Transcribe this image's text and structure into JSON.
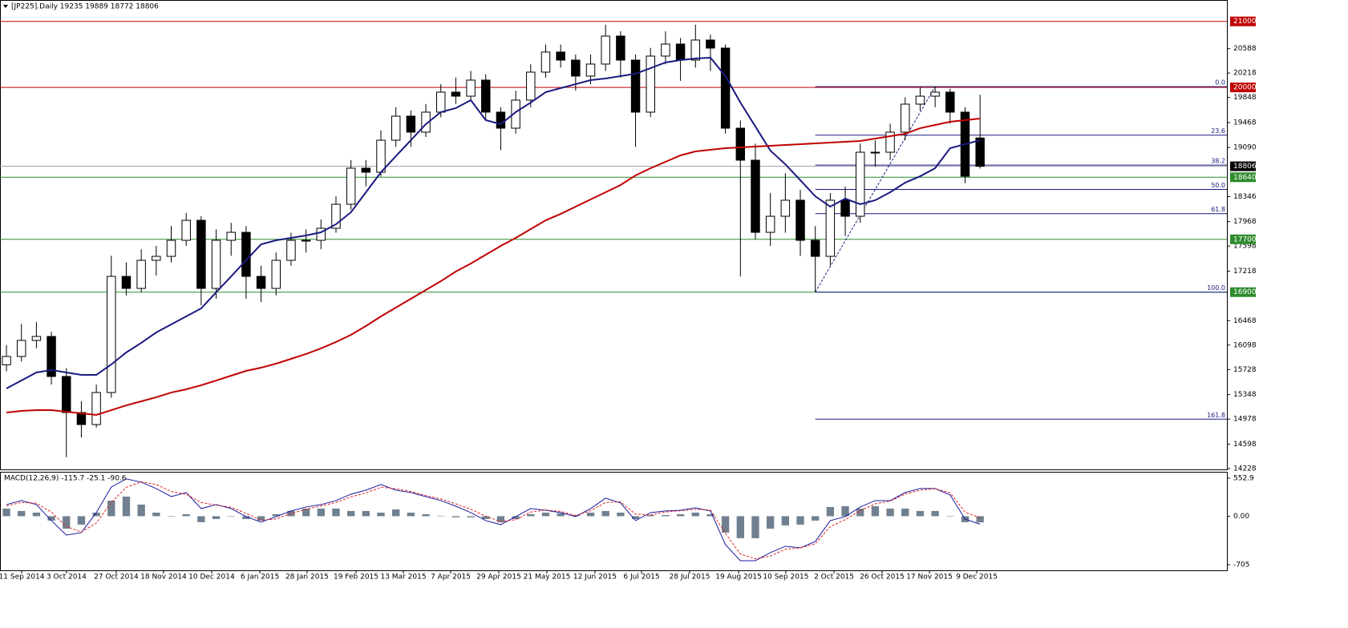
{
  "chart_data": [
    {
      "type": "candlestick",
      "title": "[JP225].Daily  19235 19889 18772 18806",
      "x": [
        0,
        1,
        2,
        3,
        4,
        5,
        6,
        7,
        8,
        9,
        10,
        11,
        12,
        13,
        14,
        15,
        16,
        17,
        18,
        19,
        20,
        21,
        22,
        23,
        24,
        25,
        26,
        27,
        28,
        29,
        30,
        31,
        32,
        33,
        34,
        35,
        36,
        37,
        38,
        39,
        40,
        41,
        42,
        43,
        44,
        45,
        46,
        47,
        48,
        49,
        50,
        51,
        52,
        53,
        54,
        55,
        56,
        57,
        58,
        59,
        60,
        61,
        62,
        63,
        64,
        65
      ],
      "open": [
        15800,
        15926,
        16169,
        16229,
        15623,
        15077,
        14895,
        15380,
        17139,
        16957,
        17382,
        17442,
        17685,
        17988,
        16957,
        17685,
        17806,
        17139,
        16957,
        17382,
        17685,
        17685,
        17867,
        18231,
        18777,
        18716,
        19201,
        19565,
        19323,
        19626,
        19929,
        19868,
        20111,
        19626,
        19383,
        19808,
        20232,
        20536,
        20414,
        20172,
        20354,
        20778,
        20414,
        19626,
        20475,
        20657,
        20414,
        20718,
        20596,
        19383,
        18898,
        17806,
        18049,
        18292,
        17685,
        17442,
        18292,
        18049,
        19019,
        19019,
        19323,
        19747,
        19868,
        19929,
        19626,
        19235
      ],
      "high": [
        16100,
        16420,
        16450,
        16300,
        15750,
        15250,
        15500,
        17450,
        17350,
        17550,
        17600,
        17900,
        18100,
        18050,
        17850,
        17950,
        17900,
        17300,
        17500,
        17800,
        17850,
        18000,
        18350,
        18900,
        18900,
        19350,
        19700,
        19650,
        19750,
        20050,
        20150,
        20250,
        20200,
        19700,
        19950,
        20350,
        20650,
        20650,
        20500,
        20500,
        20950,
        20850,
        20500,
        20600,
        20850,
        20750,
        20950,
        20800,
        20650,
        19500,
        19150,
        18400,
        18700,
        18450,
        17900,
        18400,
        18500,
        19150,
        19200,
        19450,
        19850,
        20000,
        20012,
        19980,
        19700,
        19889
      ],
      "low": [
        15700,
        15850,
        16050,
        15500,
        14400,
        14700,
        14850,
        15300,
        16850,
        16900,
        17150,
        17350,
        17600,
        16700,
        16800,
        17450,
        16800,
        16750,
        16850,
        17300,
        17500,
        17550,
        17800,
        18150,
        18500,
        18650,
        19100,
        19100,
        19250,
        19550,
        19750,
        19800,
        19500,
        19050,
        19300,
        19700,
        20150,
        20300,
        19950,
        20050,
        20250,
        20150,
        19100,
        19550,
        20350,
        20100,
        20300,
        20250,
        19300,
        17139,
        17700,
        17600,
        17800,
        17450,
        16900,
        17300,
        17750,
        17950,
        18800,
        18900,
        19200,
        19650,
        19700,
        19450,
        18550,
        18772
      ],
      "close": [
        15926,
        16169,
        16229,
        15623,
        15077,
        14895,
        15380,
        17139,
        16957,
        17382,
        17442,
        17685,
        17988,
        16957,
        17685,
        17806,
        17139,
        16957,
        17382,
        17685,
        17685,
        17867,
        18231,
        18777,
        18716,
        19201,
        19565,
        19323,
        19626,
        19929,
        19868,
        20111,
        19626,
        19383,
        19808,
        20232,
        20536,
        20414,
        20172,
        20354,
        20778,
        20414,
        19626,
        20475,
        20657,
        20414,
        20718,
        20596,
        19383,
        18898,
        17806,
        18049,
        18292,
        17685,
        17442,
        18292,
        18049,
        19019,
        19019,
        19323,
        19747,
        19868,
        19929,
        19626,
        18655,
        18806
      ],
      "up_color": "#ffffff",
      "down_color": "#000000",
      "edge_color": "#000000",
      "lines": [
        {
          "color": "#1a1a80",
          "values": [
            15441,
            15562,
            15684,
            15720,
            15684,
            15647,
            15647,
            15805,
            15987,
            16132,
            16290,
            16411,
            16533,
            16654,
            16897,
            17139,
            17382,
            17624,
            17685,
            17721,
            17758,
            17806,
            17928,
            18110,
            18413,
            18716,
            18959,
            19201,
            19444,
            19626,
            19687,
            19808,
            19505,
            19444,
            19626,
            19771,
            19929,
            19990,
            20050,
            20111,
            20135,
            20172,
            20208,
            20293,
            20378,
            20414,
            20439,
            20451,
            20172,
            19771,
            19408,
            19044,
            18837,
            18595,
            18352,
            18195,
            18316,
            18231,
            18292,
            18413,
            18558,
            18655,
            18777,
            19080,
            19141,
            19201
          ]
        },
        {
          "color": "#c00000",
          "values": [
            15077,
            15101,
            15113,
            15113,
            15089,
            15065,
            15041,
            15113,
            15186,
            15247,
            15308,
            15380,
            15429,
            15490,
            15562,
            15635,
            15708,
            15756,
            15817,
            15890,
            15963,
            16048,
            16145,
            16254,
            16387,
            16533,
            16666,
            16800,
            16933,
            17066,
            17212,
            17333,
            17467,
            17600,
            17721,
            17855,
            17988,
            18085,
            18195,
            18304,
            18413,
            18522,
            18668,
            18777,
            18874,
            18971,
            19031,
            19056,
            19080,
            19092,
            19104,
            19116,
            19129,
            19141,
            19153,
            19165,
            19177,
            19189,
            19226,
            19262,
            19298,
            19383,
            19432,
            19480,
            19505,
            19529
          ]
        }
      ],
      "xlim": [
        -0.43,
        81.48
      ],
      "xticks": [
        {
          "value": 1.02,
          "label": "11 Sep 2014"
        },
        {
          "value": 4.01,
          "label": "3 Oct 2014"
        },
        {
          "value": 7.33,
          "label": "27 Oct 2014"
        },
        {
          "value": 10.49,
          "label": "18 Nov 2014"
        },
        {
          "value": 13.7,
          "label": "10 Dec 2014"
        },
        {
          "value": 16.92,
          "label": "6 Jan 2015"
        },
        {
          "value": 20.07,
          "label": "28 Jan 2015"
        },
        {
          "value": 23.34,
          "label": "19 Feb 2015"
        },
        {
          "value": 26.5,
          "label": "13 Mar 2015"
        },
        {
          "value": 29.66,
          "label": "7 Apr 2015"
        },
        {
          "value": 32.87,
          "label": "29 Apr 2015"
        },
        {
          "value": 36.08,
          "label": "21 May 2015"
        },
        {
          "value": 39.29,
          "label": "12 Jun 2015"
        },
        {
          "value": 42.4,
          "label": "6 Jul 2015"
        },
        {
          "value": 45.61,
          "label": "28 Jul 2015"
        },
        {
          "value": 48.88,
          "label": "19 Aug 2015"
        },
        {
          "value": 52.03,
          "label": "10 Sep 2015"
        },
        {
          "value": 55.25,
          "label": "2 Oct 2015"
        },
        {
          "value": 58.46,
          "label": "26 Oct 2015"
        },
        {
          "value": 61.62,
          "label": "17 Nov 2015"
        },
        {
          "value": 64.78,
          "label": "9 Dec 2015"
        }
      ],
      "ylim": [
        14228,
        21312
      ],
      "yticks": [
        20588,
        20218,
        19848,
        19468,
        19090,
        18346,
        17968,
        17598,
        17218,
        16468,
        16098,
        15728,
        15348,
        14978,
        14598,
        14228
      ],
      "levels": [
        {
          "value": 21000,
          "color": "#c00000",
          "box": "#c00000"
        },
        {
          "value": 20000,
          "color": "#c00000",
          "box": "#c00000"
        },
        {
          "value": 18640,
          "color": "#2e8b2e",
          "box": "#2e8b2e"
        },
        {
          "value": 17700,
          "color": "#2e8b2e",
          "box": "#2e8b2e"
        },
        {
          "value": 16900,
          "color": "#2e8b2e",
          "box": "#2e8b2e"
        },
        {
          "value": 18806,
          "color": "#a0a0b0",
          "box": "#000000"
        }
      ],
      "fib": {
        "high": 20012,
        "low": 16900,
        "low_bar": 54,
        "high_bar": 62,
        "color": "#1a1a80",
        "levels": [
          {
            "value": 0,
            "label": "0.0"
          },
          23.6,
          38.2,
          {
            "value": 50,
            "label": "50.0"
          },
          61.8,
          {
            "value": 100,
            "label": "100.0"
          },
          161.8
        ]
      }
    },
    {
      "type": "macd",
      "title": "MACD(12,26,9) -115.7 -25.1 -90.6",
      "histogram": [
        111,
        76,
        52,
        -64,
        -181,
        -122,
        52,
        227,
        285,
        169,
        52,
        -6,
        29,
        -87,
        -41,
        -6,
        -41,
        -64,
        29,
        76,
        111,
        111,
        111,
        76,
        76,
        52,
        99,
        52,
        29,
        6,
        -17,
        -17,
        -41,
        -87,
        -41,
        29,
        52,
        41,
        17,
        52,
        76,
        52,
        -41,
        17,
        17,
        29,
        52,
        29,
        -239,
        -320,
        -320,
        -181,
        -134,
        -122,
        -64,
        134,
        146,
        111,
        146,
        111,
        111,
        76,
        76,
        -6,
        -87,
        -90.6
      ],
      "main": [
        169,
        227,
        169,
        -64,
        -274,
        -239,
        52,
        425,
        542,
        495,
        402,
        285,
        344,
        111,
        169,
        111,
        -6,
        -87,
        -6,
        76,
        134,
        169,
        227,
        320,
        379,
        460,
        379,
        344,
        285,
        227,
        146,
        52,
        -64,
        -122,
        -6,
        111,
        87,
        52,
        -6,
        111,
        262,
        192,
        -64,
        52,
        76,
        87,
        122,
        76,
        -414,
        -647,
        -647,
        -530,
        -437,
        -460,
        -367,
        -64,
        -6,
        134,
        227,
        227,
        344,
        402,
        402,
        309,
        -41,
        -115.7
      ],
      "signal": [
        150,
        200,
        190,
        60,
        -150,
        -230,
        -100,
        200,
        420,
        500,
        460,
        360,
        320,
        200,
        160,
        130,
        40,
        -60,
        -40,
        40,
        100,
        150,
        200,
        280,
        340,
        420,
        400,
        360,
        300,
        250,
        180,
        100,
        0,
        -80,
        -50,
        60,
        90,
        70,
        10,
        80,
        200,
        210,
        30,
        20,
        60,
        80,
        100,
        90,
        -250,
        -550,
        -620,
        -580,
        -480,
        -460,
        -400,
        -150,
        -50,
        80,
        180,
        220,
        320,
        380,
        400,
        340,
        60,
        -25.1
      ],
      "hist_color": "#708090",
      "main_color": "#1a1aa0",
      "signal_color": "#e02020",
      "ylim": [
        -787,
        634
      ],
      "yticks": [
        552.9,
        {
          "value": 0,
          "label": "0.00"
        },
        -705
      ]
    }
  ]
}
